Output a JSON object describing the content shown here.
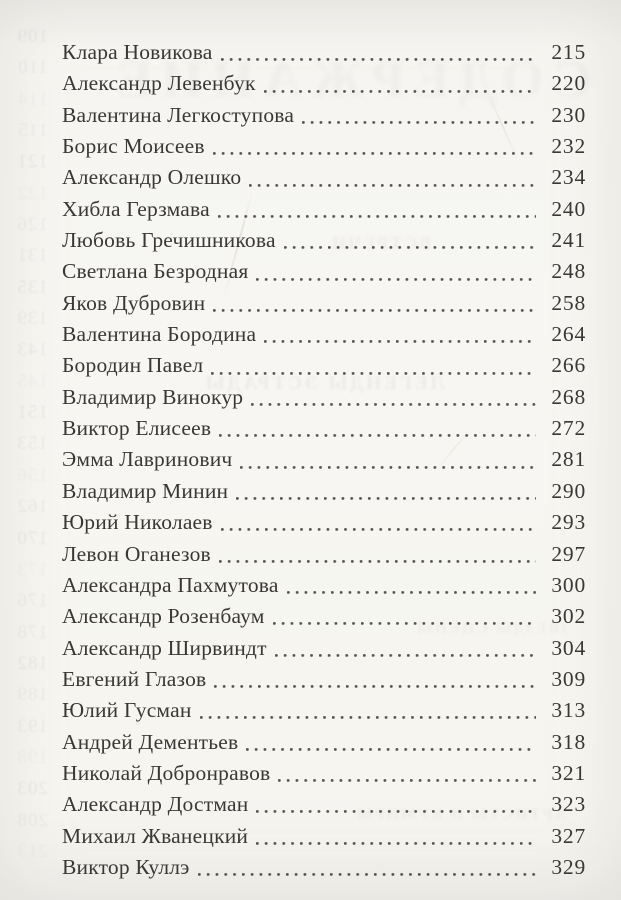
{
  "toc": {
    "entries": [
      {
        "name": "Клара Новикова",
        "page": "215"
      },
      {
        "name": "Александр Левенбук",
        "page": "220"
      },
      {
        "name": "Валентина Легкоступова",
        "page": "230"
      },
      {
        "name": "Борис Моисеев",
        "page": "232"
      },
      {
        "name": "Александр Олешко",
        "page": "234"
      },
      {
        "name": "Хибла Герзмава",
        "page": "240"
      },
      {
        "name": "Любовь Гречишникова",
        "page": "241"
      },
      {
        "name": "Светлана Безродная",
        "page": "248"
      },
      {
        "name": "Яков Дубровин",
        "page": "258"
      },
      {
        "name": "Валентина Бородина",
        "page": "264"
      },
      {
        "name": "Бородин Павел",
        "page": "266"
      },
      {
        "name": "Владимир Винокур",
        "page": "268"
      },
      {
        "name": "Виктор Елисеев",
        "page": "272"
      },
      {
        "name": "Эмма Лавринович",
        "page": "281"
      },
      {
        "name": "Владимир Минин",
        "page": "290"
      },
      {
        "name": "Юрий Николаев",
        "page": "293"
      },
      {
        "name": "Левон Оганезов",
        "page": "297"
      },
      {
        "name": "Александра Пахмутова",
        "page": "300"
      },
      {
        "name": "Александр Розенбаум",
        "page": "302"
      },
      {
        "name": "Александр Ширвиндт",
        "page": "304"
      },
      {
        "name": "Евгений Глазов",
        "page": "309"
      },
      {
        "name": "Юлий Гусман",
        "page": "313"
      },
      {
        "name": "Андрей Дементьев",
        "page": "318"
      },
      {
        "name": "Николай Добронравов",
        "page": "321"
      },
      {
        "name": "Александр Достман",
        "page": "323"
      },
      {
        "name": "Михаил Жванецкий",
        "page": "327"
      },
      {
        "name": "Виктор Куллэ",
        "page": "329"
      }
    ]
  },
  "showthrough": {
    "ghost_title": "СОДЕРЖАНИЕ",
    "ghost_heading": "ЛЕГЕНДЫ ЭСТРАДЫ",
    "smudge_1": "ВСТРЕЧИ",
    "smudge_2": "ЗВЕЗДЫ СЦЕНЫ",
    "smudge_3": "АРТИСТЫ И КУМИРЫ",
    "ghost_page_numbers": [
      "109",
      "110",
      "114",
      "115",
      "121",
      "122",
      "126",
      "131",
      "135",
      "139",
      "143",
      "145",
      "151",
      "153",
      "156",
      "162",
      "170",
      "173",
      "176",
      "178",
      "182",
      "189",
      "193",
      "198",
      "203",
      "208",
      "213"
    ]
  },
  "colors": {
    "paper": "#f7f6f2",
    "ink": "#3a3836",
    "ghost_ink": "#828a96"
  }
}
